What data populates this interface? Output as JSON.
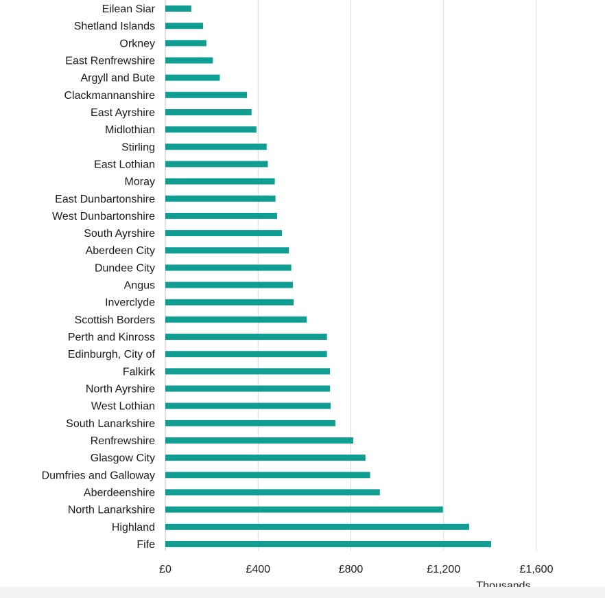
{
  "chart_data": {
    "type": "bar",
    "orientation": "horizontal",
    "categories": [
      "Eilean Siar",
      "Shetland Islands",
      "Orkney",
      "East Renfrewshire",
      "Argyll and Bute",
      "Clackmannanshire",
      "East Ayrshire",
      "Midlothian",
      "Stirling",
      "East Lothian",
      "Moray",
      "East Dunbartonshire",
      "West Dunbartonshire",
      "South Ayrshire",
      "Aberdeen City",
      "Dundee City",
      "Angus",
      "Inverclyde",
      "Scottish Borders",
      "Perth and Kinross",
      "Edinburgh, City of",
      "Falkirk",
      "North Ayrshire",
      "West Lothian",
      "South Lanarkshire",
      "Renfrewshire",
      "Glasgow City",
      "Dumfries and Galloway",
      "Aberdeenshire",
      "North Lanarkshire",
      "Highland",
      "Fife"
    ],
    "values": [
      112,
      163,
      177,
      205,
      235,
      352,
      372,
      393,
      437,
      442,
      472,
      475,
      482,
      503,
      533,
      543,
      550,
      553,
      610,
      697,
      697,
      710,
      710,
      713,
      733,
      810,
      863,
      883,
      925,
      1197,
      1310,
      1405
    ],
    "xlim": [
      0,
      1600
    ],
    "xticks": [
      0,
      400,
      800,
      1200,
      1600
    ],
    "xtick_labels": [
      "£0",
      "£400",
      "£800",
      "£1,200",
      "£1,600"
    ],
    "x_unit_label": "Thousands",
    "grid": "vertical",
    "bar_color": "#0f9e91",
    "grid_color": "#d9d9d9"
  }
}
